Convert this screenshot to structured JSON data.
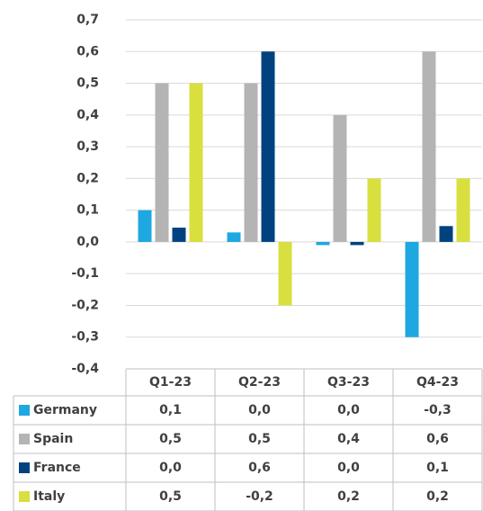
{
  "chart_data": {
    "type": "bar",
    "categories": [
      "Q1-23",
      "Q2-23",
      "Q3-23",
      "Q4-23"
    ],
    "series": [
      {
        "name": "Germany",
        "color": "#1ea7e1",
        "values": [
          0.1,
          0.03,
          -0.01,
          -0.3
        ],
        "value_labels": [
          "0,1",
          "0,0",
          "0,0",
          "-0,3"
        ]
      },
      {
        "name": "Spain",
        "color": "#b4b4b4",
        "values": [
          0.5,
          0.5,
          0.4,
          0.6
        ],
        "value_labels": [
          "0,5",
          "0,5",
          "0,4",
          "0,6"
        ]
      },
      {
        "name": "France",
        "color": "#00427f",
        "values": [
          0.045,
          0.6,
          -0.01,
          0.05
        ],
        "value_labels": [
          "0,0",
          "0,6",
          "0,0",
          "0,1"
        ]
      },
      {
        "name": "Italy",
        "color": "#d9df3f",
        "values": [
          0.5,
          -0.2,
          0.2,
          0.2
        ],
        "value_labels": [
          "0,5",
          "-0,2",
          "0,2",
          "0,2"
        ]
      }
    ],
    "ylim": [
      -0.4,
      0.7
    ],
    "yticks": [
      {
        "value": -0.4,
        "label": "-0,4"
      },
      {
        "value": -0.3,
        "label": "-0,3"
      },
      {
        "value": -0.2,
        "label": "-0,2"
      },
      {
        "value": -0.1,
        "label": "-0,1"
      },
      {
        "value": 0,
        "label": "0,0"
      },
      {
        "value": 0.1,
        "label": "0,1"
      },
      {
        "value": 0.2,
        "label": "0,2"
      },
      {
        "value": 0.3,
        "label": "0,3"
      },
      {
        "value": 0.4,
        "label": "0,4"
      },
      {
        "value": 0.5,
        "label": "0,5"
      },
      {
        "value": 0.6,
        "label": "0,6"
      },
      {
        "value": 0.7,
        "label": "0,7"
      }
    ],
    "grid": true
  }
}
